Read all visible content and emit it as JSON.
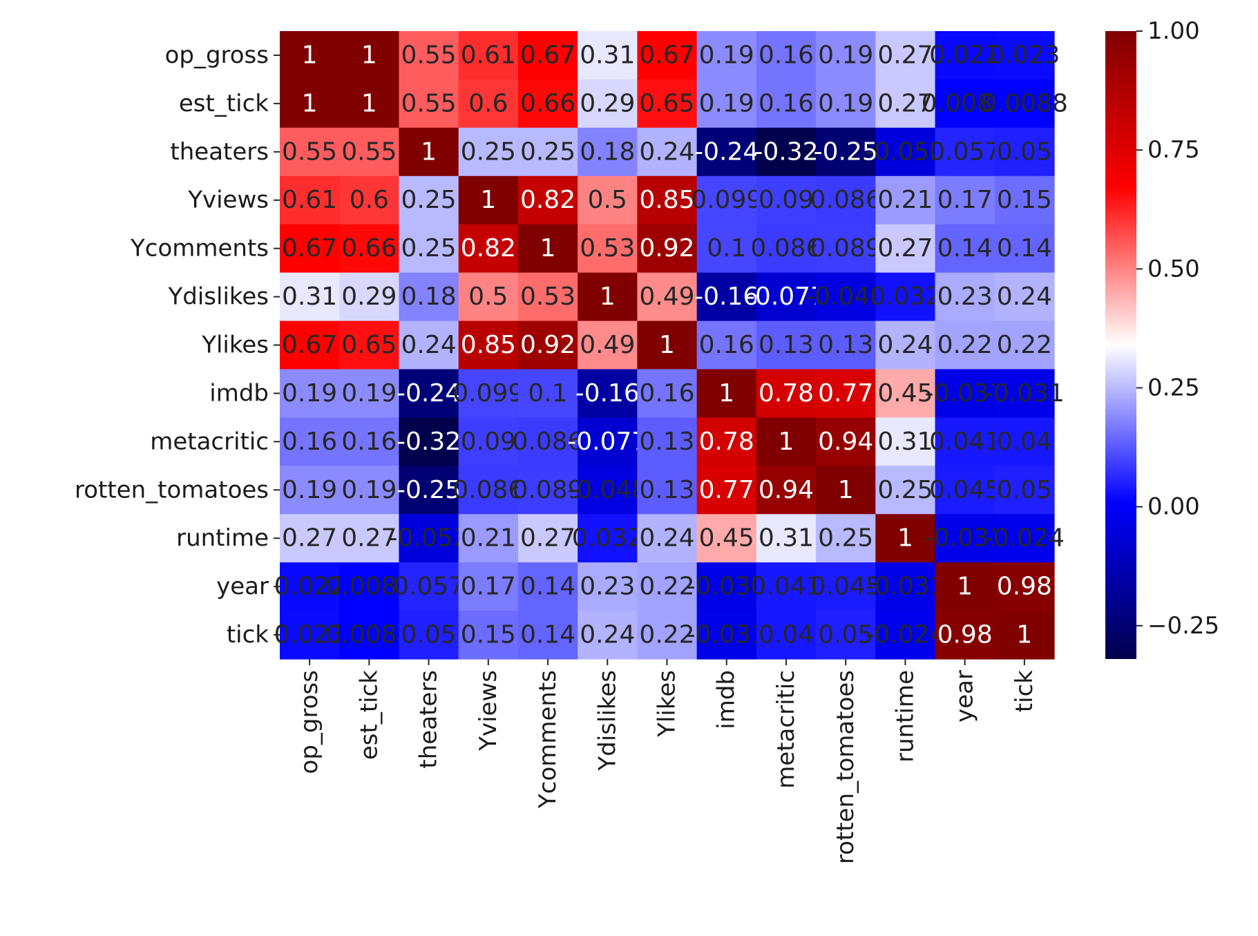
{
  "chart_data": {
    "type": "heatmap",
    "title": "",
    "xlabel": "",
    "ylabel": "",
    "labels": [
      "op_gross",
      "est_tick",
      "theaters",
      "Yviews",
      "Ycomments",
      "Ydislikes",
      "Ylikes",
      "imdb",
      "metacritic",
      "rotten_tomatoes",
      "runtime",
      "year",
      "tick"
    ],
    "annotations": [
      [
        "1",
        "1",
        "0.55",
        "0.61",
        "0.67",
        "0.31",
        "0.67",
        "0.19",
        "0.16",
        "0.19",
        "0.27",
        "0.022",
        "0.023"
      ],
      [
        "1",
        "1",
        "0.55",
        "0.6",
        "0.66",
        "0.29",
        "0.65",
        "0.19",
        "0.16",
        "0.19",
        "0.27",
        "0.0088",
        "0.0088"
      ],
      [
        "0.55",
        "0.55",
        "1",
        "0.25",
        "0.25",
        "0.18",
        "0.24",
        "-0.24",
        "-0.32",
        "-0.25",
        "-0.052",
        "0.057",
        "0.05"
      ],
      [
        "0.61",
        "0.6",
        "0.25",
        "1",
        "0.82",
        "0.5",
        "0.85",
        "0.099",
        "0.09",
        "0.086",
        "0.21",
        "0.17",
        "0.15"
      ],
      [
        "0.67",
        "0.66",
        "0.25",
        "0.82",
        "1",
        "0.53",
        "0.92",
        "0.1",
        "0.086",
        "0.089",
        "0.27",
        "0.14",
        "0.14"
      ],
      [
        "0.31",
        "0.29",
        "0.18",
        "0.5",
        "0.53",
        "1",
        "0.49",
        "-0.16",
        "-0.077",
        "-0.048",
        "0.032",
        "0.23",
        "0.24"
      ],
      [
        "0.67",
        "0.65",
        "0.24",
        "0.85",
        "0.92",
        "0.49",
        "1",
        "0.16",
        "0.13",
        "0.13",
        "0.24",
        "0.22",
        "0.22"
      ],
      [
        "0.19",
        "0.19",
        "-0.24",
        "0.099",
        "0.1",
        "-0.16",
        "0.16",
        "1",
        "0.78",
        "0.77",
        "0.45",
        "-0.037",
        "-0.031"
      ],
      [
        "0.16",
        "0.16",
        "-0.32",
        "0.09",
        "0.086",
        "-0.077",
        "0.13",
        "0.78",
        "1",
        "0.94",
        "0.31",
        "0.041",
        "0.04"
      ],
      [
        "0.19",
        "0.19",
        "-0.25",
        "0.086",
        "0.089",
        "-0.048",
        "0.13",
        "0.77",
        "0.94",
        "1",
        "0.25",
        "0.045",
        "0.05"
      ],
      [
        "0.27",
        "0.27",
        "-0.052",
        "0.21",
        "0.27",
        "0.032",
        "0.24",
        "0.45",
        "0.31",
        "0.25",
        "1",
        "-0.031",
        "-0.024"
      ],
      [
        "0.022",
        "0.0088",
        "0.057",
        "0.17",
        "0.14",
        "0.23",
        "0.22",
        "-0.037",
        "0.041",
        "0.045",
        "-0.031",
        "1",
        "0.98"
      ],
      [
        "0.023",
        "0.0088",
        "0.05",
        "0.15",
        "0.14",
        "0.24",
        "0.22",
        "-0.031",
        "0.04",
        "0.05",
        "-0.024",
        "0.98",
        "1"
      ]
    ],
    "colormap": "seismic",
    "vmin": -0.32,
    "vmax": 1.0,
    "colorbar": {
      "ticks": [
        -0.25,
        0.0,
        0.25,
        0.5,
        0.75,
        1.0
      ],
      "tick_labels": [
        "−0.25",
        "0.00",
        "0.25",
        "0.50",
        "0.75",
        "1.00"
      ]
    }
  }
}
